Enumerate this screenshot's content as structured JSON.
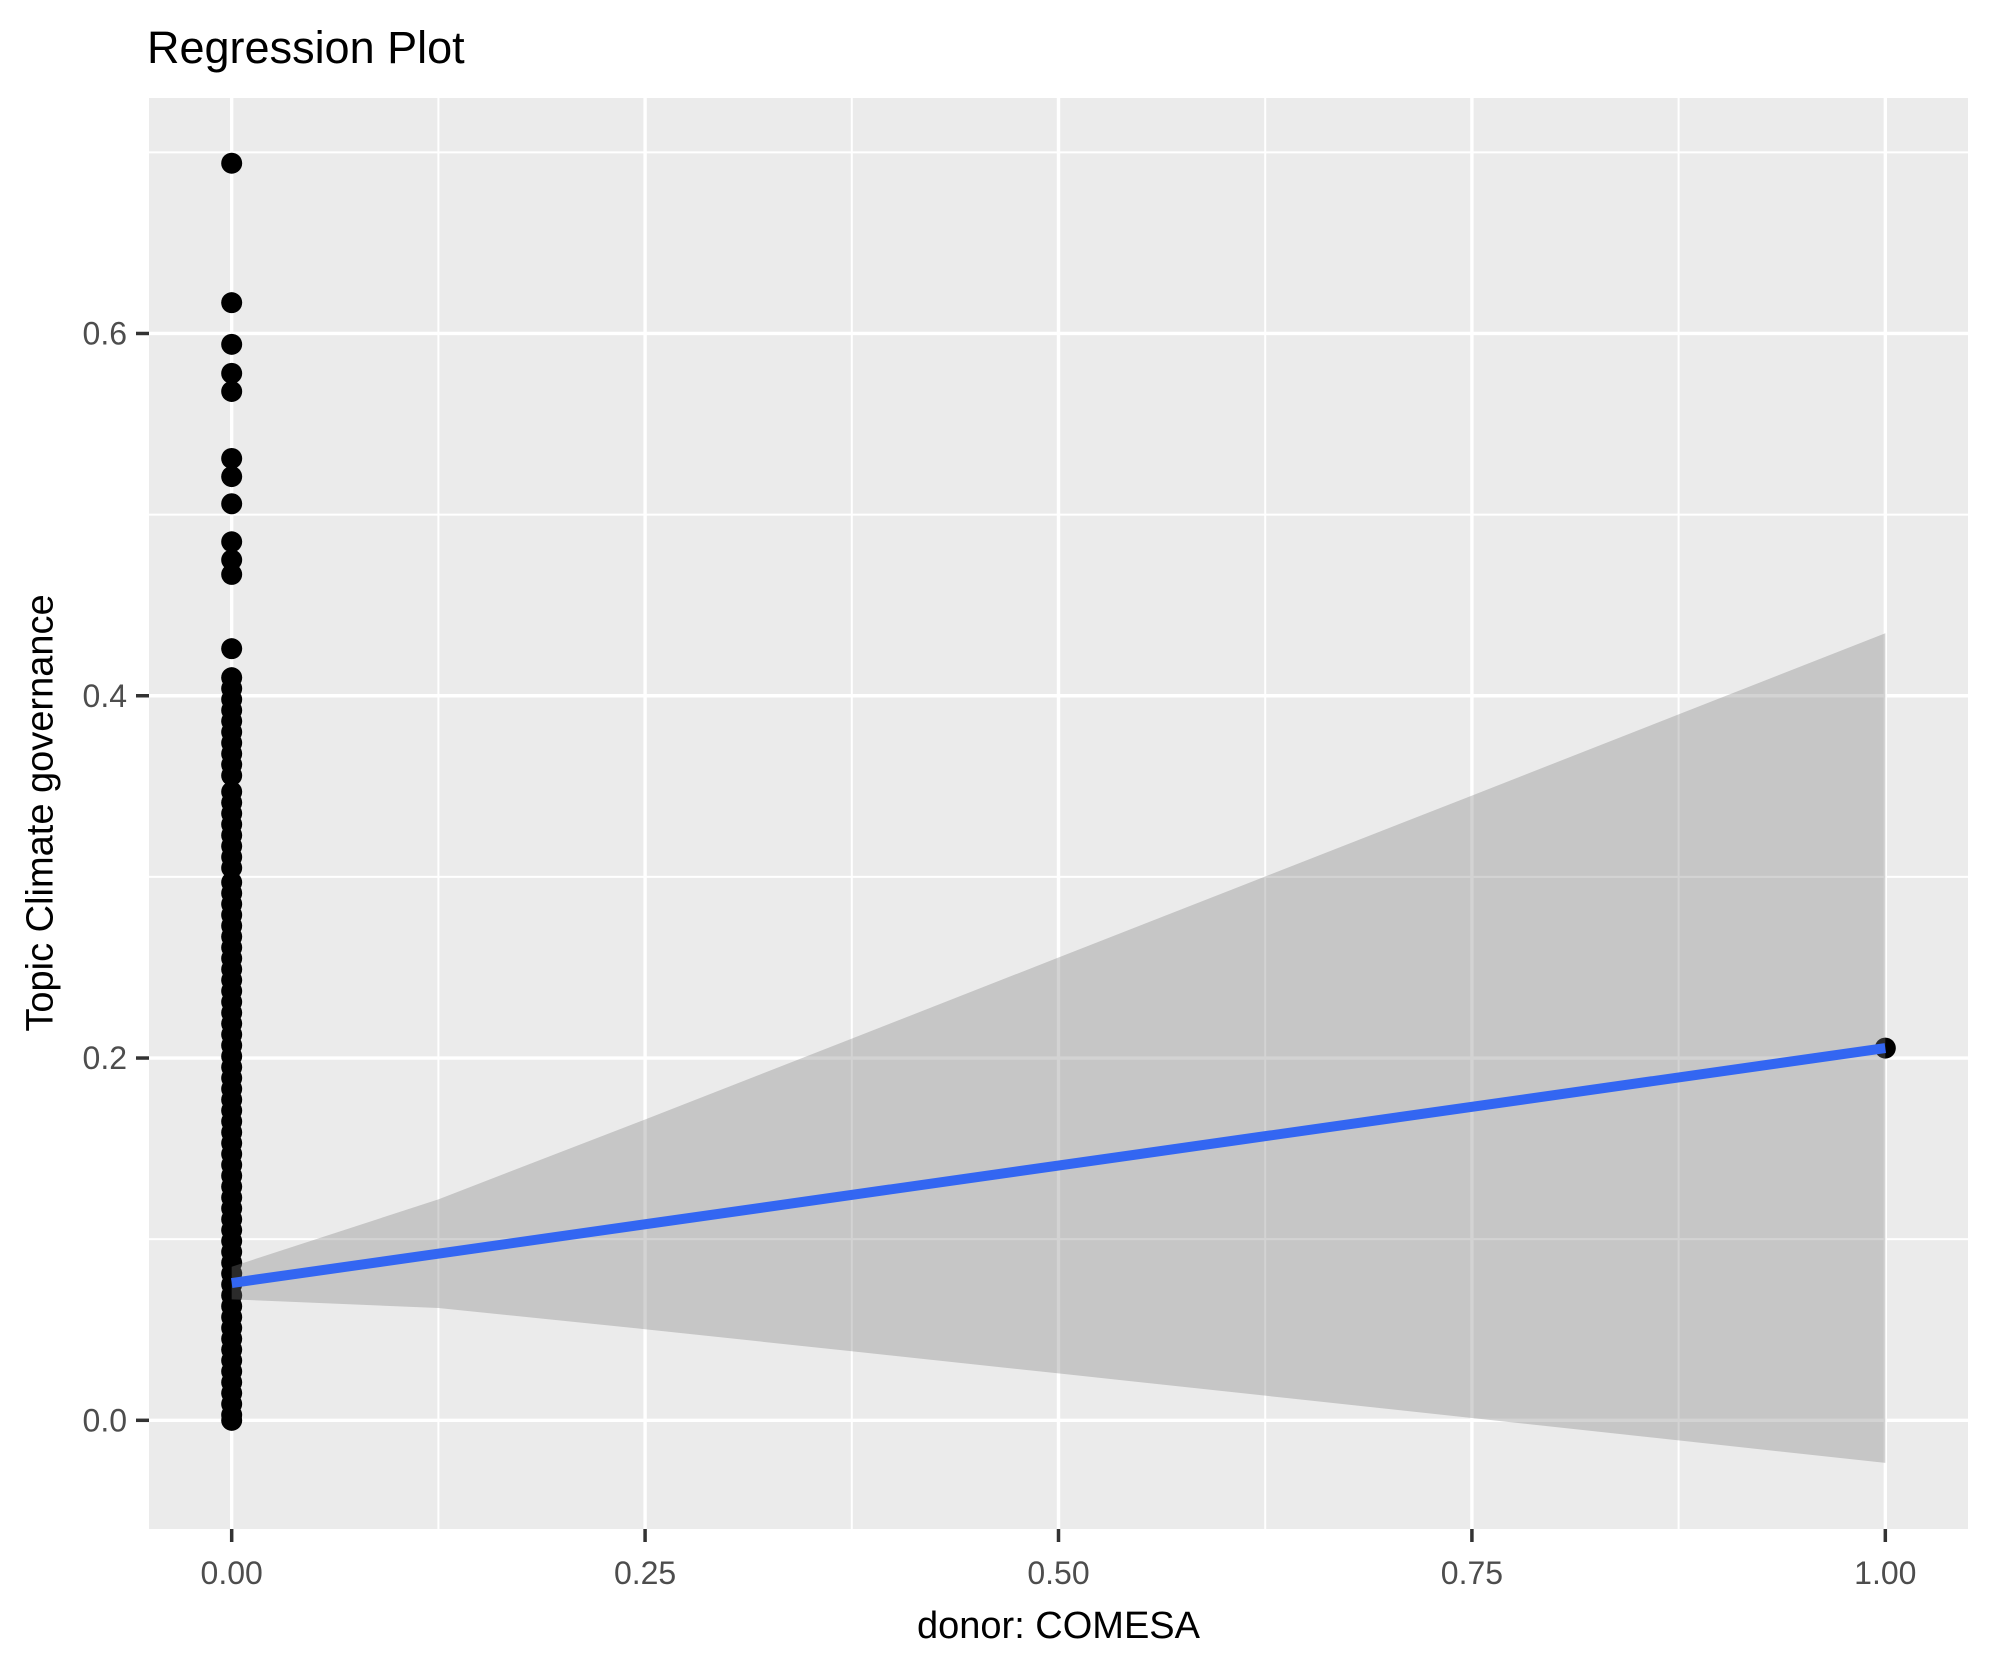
{
  "chart_data": {
    "type": "scatter",
    "title": "Regression Plot",
    "xlabel": "donor: COMESA",
    "ylabel": "Topic Climate governance",
    "xlim": [
      -0.05,
      1.05
    ],
    "ylim": [
      -0.06,
      0.73
    ],
    "grid": true,
    "legend": "none",
    "x_ticks": {
      "values": [
        0.0,
        0.25,
        0.5,
        0.75,
        1.0
      ],
      "labels": [
        "0.00",
        "0.25",
        "0.50",
        "0.75",
        "1.00"
      ]
    },
    "y_ticks": {
      "values": [
        0.0,
        0.2,
        0.4,
        0.6
      ],
      "labels": [
        "0.0",
        "0.2",
        "0.4",
        "0.6"
      ]
    },
    "x_minor": [
      0.125,
      0.375,
      0.625,
      0.875
    ],
    "y_minor": [
      0.1,
      0.3,
      0.5,
      0.7
    ],
    "points_x0_stack": [
      0.694,
      0.617,
      0.594,
      0.578,
      0.568,
      0.531,
      0.521,
      0.506,
      0.485,
      0.475,
      0.467,
      0.426,
      0.41,
      0.404,
      0.398,
      0.392,
      0.386,
      0.38,
      0.374,
      0.368,
      0.362,
      0.356,
      0.347,
      0.341,
      0.335,
      0.329,
      0.323,
      0.317,
      0.311,
      0.305,
      0.297,
      0.291,
      0.285,
      0.279,
      0.273,
      0.267,
      0.261,
      0.255,
      0.249,
      0.243,
      0.237,
      0.231,
      0.225,
      0.219,
      0.213,
      0.207,
      0.201,
      0.195,
      0.189,
      0.183,
      0.177,
      0.171,
      0.165,
      0.159,
      0.153,
      0.147,
      0.141,
      0.135,
      0.129,
      0.123,
      0.117,
      0.111,
      0.105,
      0.099,
      0.093,
      0.087,
      0.081,
      0.075,
      0.069,
      0.063,
      0.057,
      0.051,
      0.045,
      0.039,
      0.033,
      0.027,
      0.021,
      0.015,
      0.009,
      0.003,
      0.0
    ],
    "other_points": [
      {
        "x": 1.0,
        "y": 0.2055
      }
    ],
    "regression_line": {
      "x": [
        0.0,
        1.0
      ],
      "y": [
        0.0758,
        0.2055
      ]
    },
    "ribbon": {
      "x": [
        0.0,
        0.125,
        0.25,
        0.375,
        0.5,
        0.625,
        0.75,
        0.875,
        1.0
      ],
      "upper": [
        0.0848,
        0.122,
        0.1661,
        0.2107,
        0.2555,
        0.3002,
        0.3449,
        0.3897,
        0.4345
      ],
      "lower": [
        0.0668,
        0.062,
        0.0503,
        0.0381,
        0.0259,
        0.0136,
        0.0013,
        -0.0111,
        -0.0235
      ]
    },
    "colors": {
      "panel_bg": "#EBEBEB",
      "grid": "#FFFFFF",
      "point": "#000000",
      "line": "#3366F2",
      "ribbon": "#7F7F7F",
      "tick_text": "#4D4D4D",
      "tick_mark": "#333333"
    },
    "ribbon_opacity": 0.34
  }
}
